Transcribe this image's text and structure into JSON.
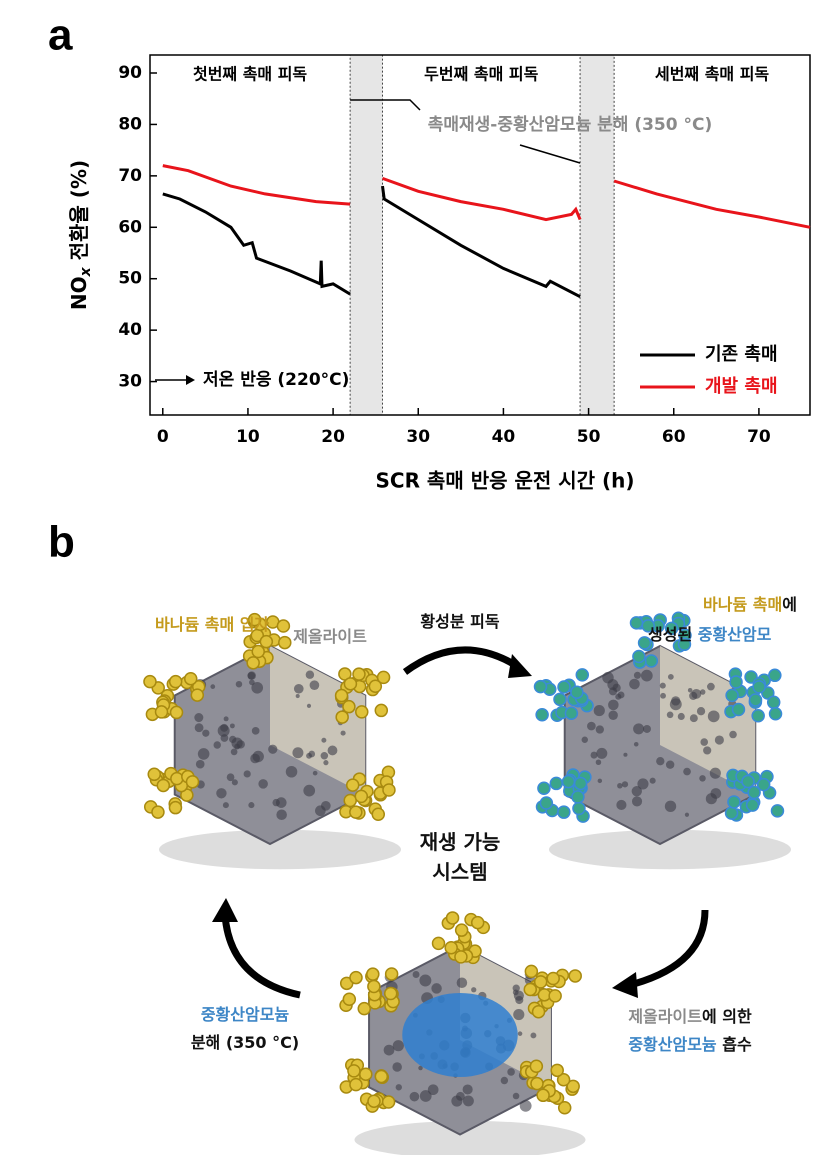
{
  "panel_labels": [
    "a",
    "b"
  ],
  "chart_data": {
    "type": "line",
    "x_label": "SCR 촉매 반응 운전 시간 (h)",
    "y_label": {
      "main": "NO",
      "sub": "x",
      "rest": " 전환율 (%)"
    },
    "xlim": [
      -1.5,
      76
    ],
    "ylim": [
      23.5,
      93.5
    ],
    "xticks": [
      0,
      10,
      20,
      30,
      40,
      50,
      60,
      70
    ],
    "yticks": [
      30,
      40,
      50,
      60,
      70,
      80,
      90
    ],
    "legend": "lower right",
    "regeneration_periods": [
      [
        22,
        25.8
      ],
      [
        49,
        53
      ]
    ],
    "annotations": [
      "첫번째 촉매 피독",
      "두번째 촉매 피독",
      "세번째 촉매 피독",
      "촉매재생-중황산암모늄 분해 (350 °C)",
      "저온 반응 (220°C)"
    ],
    "series": [
      {
        "name": "기존 촉매",
        "color": "#000000",
        "x": [
          0,
          2,
          5,
          8,
          9.5,
          10.5,
          11,
          15,
          18.5,
          18.6,
          18.7,
          20,
          22,
          24,
          25.8,
          26,
          30,
          35,
          40,
          45,
          45.5,
          49
        ],
        "values": [
          66.5,
          65.5,
          63,
          60,
          56.5,
          57,
          54,
          51.5,
          49,
          53.5,
          48.5,
          49,
          47,
          null,
          68,
          65.5,
          61.5,
          56.5,
          52,
          48.5,
          49.5,
          46.5
        ]
      },
      {
        "name": "개발 촉매",
        "color": "#e8141b",
        "x": [
          0,
          3,
          8,
          12,
          18,
          22,
          24,
          25.8,
          30,
          35,
          40,
          45,
          48,
          48.5,
          49,
          51,
          53,
          58,
          65,
          70,
          76
        ],
        "values": [
          72,
          71,
          68,
          66.5,
          65,
          64.5,
          null,
          69.5,
          67,
          65,
          63.5,
          61.5,
          62.5,
          63.5,
          61.5,
          null,
          69,
          66.5,
          63.5,
          62,
          60
        ]
      }
    ]
  },
  "diagram": {
    "labels": [
      {
        "parts": [
          {
            "text": "바나듐 촉매 입자",
            "color": "#c49a1c"
          }
        ]
      },
      {
        "parts": [
          {
            "text": "제올라이트",
            "color": "#8a8a8a"
          }
        ]
      },
      {
        "parts": [
          {
            "text": "황성분 피독",
            "color": "#111111"
          }
        ]
      },
      {
        "parts": [
          {
            "text": "바나듐 촉매",
            "color": "#c49a1c"
          },
          {
            "text": "에",
            "color": "#111111"
          }
        ]
      },
      {
        "parts": [
          {
            "text": "생성된 ",
            "color": "#111111"
          },
          {
            "text": "중황산암모",
            "color": "#3d86c6"
          }
        ]
      },
      {
        "parts": [
          {
            "text": "재생 가능",
            "color": "#111111"
          }
        ]
      },
      {
        "parts": [
          {
            "text": "시스템",
            "color": "#111111"
          }
        ]
      },
      {
        "parts": [
          {
            "text": "중황산암모늄",
            "color": "#3d86c6"
          }
        ]
      },
      {
        "parts": [
          {
            "text": "분해 (350 °C)",
            "color": "#111111"
          }
        ]
      },
      {
        "parts": [
          {
            "text": "제올라이트",
            "color": "#8a8a8a"
          },
          {
            "text": "에 의한",
            "color": "#111111"
          }
        ]
      },
      {
        "parts": [
          {
            "text": "중황산암모늄",
            "color": "#3d86c6"
          },
          {
            "text": " 흡수",
            "color": "#111111"
          }
        ]
      }
    ]
  }
}
